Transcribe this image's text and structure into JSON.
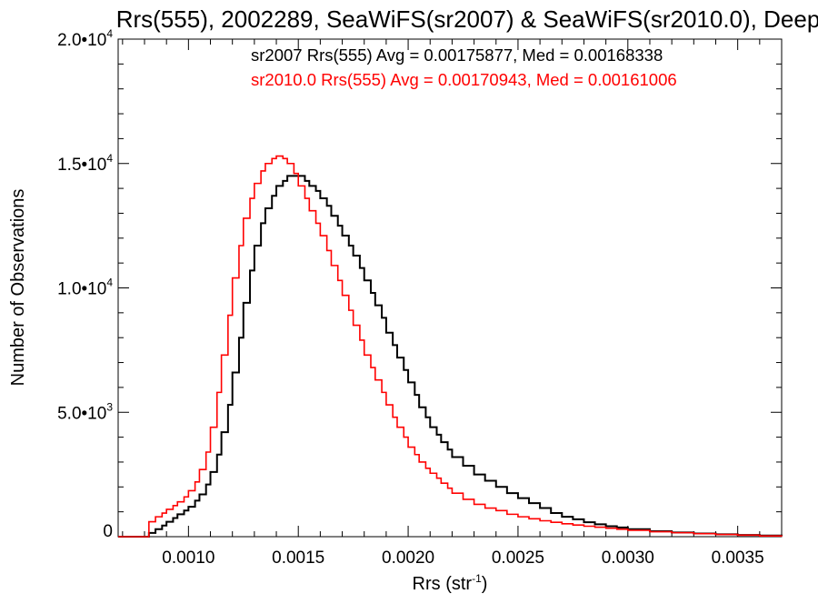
{
  "chart_data": {
    "type": "line",
    "title": "Rrs(555), 2002289, SeaWiFS(sr2007) & SeaWiFS(sr2010.0), Deep",
    "xlabel": "Rrs (str",
    "xlabel_sup": "-1",
    "xlabel_close": ")",
    "ylabel": "Number of Observations",
    "xlim": [
      0.00068,
      0.0037
    ],
    "ylim": [
      0,
      20000
    ],
    "grid": false,
    "x_ticks": [
      {
        "value": 0.001,
        "label": "0.0010"
      },
      {
        "value": 0.0015,
        "label": "0.0015"
      },
      {
        "value": 0.002,
        "label": "0.0020"
      },
      {
        "value": 0.0025,
        "label": "0.0025"
      },
      {
        "value": 0.003,
        "label": "0.0030"
      },
      {
        "value": 0.0035,
        "label": "0.0035"
      }
    ],
    "y_ticks": [
      {
        "value": 0,
        "mant": "0",
        "exp": ""
      },
      {
        "value": 5000,
        "mant": "5.0•10",
        "exp": "3"
      },
      {
        "value": 10000,
        "mant": "1.0•10",
        "exp": "4"
      },
      {
        "value": 15000,
        "mant": "1.5•10",
        "exp": "4"
      },
      {
        "value": 20000,
        "mant": "2.0•10",
        "exp": "4"
      }
    ],
    "annotations": [
      {
        "text": "sr2007 Rrs(555) Avg = 0.00175877, Med = 0.00168338",
        "color": "#000000"
      },
      {
        "text": "sr2010.0 Rrs(555) Avg = 0.00170943, Med = 0.00161006",
        "color": "#ff0000"
      }
    ],
    "series": [
      {
        "color": "#000000",
        "x": [
          0.00068,
          0.0008,
          0.00082,
          0.00085,
          0.00088,
          0.0009,
          0.00093,
          0.00095,
          0.00098,
          0.001,
          0.00103,
          0.00105,
          0.00108,
          0.0011,
          0.00113,
          0.00115,
          0.00118,
          0.0012,
          0.00123,
          0.00125,
          0.00128,
          0.0013,
          0.00133,
          0.00135,
          0.00138,
          0.0014,
          0.00143,
          0.00145,
          0.00148,
          0.0015,
          0.00153,
          0.00155,
          0.00158,
          0.0016,
          0.00163,
          0.00165,
          0.00168,
          0.0017,
          0.00173,
          0.00175,
          0.00178,
          0.0018,
          0.00183,
          0.00185,
          0.00188,
          0.0019,
          0.00193,
          0.00195,
          0.00198,
          0.002,
          0.00203,
          0.00205,
          0.00208,
          0.0021,
          0.00213,
          0.00215,
          0.00218,
          0.0022,
          0.00225,
          0.0023,
          0.00235,
          0.0024,
          0.00245,
          0.0025,
          0.00255,
          0.0026,
          0.00265,
          0.0027,
          0.00275,
          0.0028,
          0.00285,
          0.0029,
          0.00295,
          0.003,
          0.0031,
          0.0032,
          0.0033,
          0.0034,
          0.0035,
          0.0036,
          0.0037
        ],
        "y": [
          0,
          0,
          150,
          300,
          450,
          600,
          750,
          900,
          1050,
          1200,
          1450,
          1700,
          2100,
          2600,
          3300,
          4200,
          5300,
          6600,
          8000,
          9400,
          10700,
          11700,
          12600,
          13200,
          13700,
          14100,
          14300,
          14500,
          14500,
          14500,
          14300,
          14100,
          13900,
          13600,
          13300,
          12900,
          12500,
          12100,
          11700,
          11300,
          10800,
          10300,
          9800,
          9300,
          8800,
          8200,
          7700,
          7200,
          6700,
          6200,
          5700,
          5200,
          4800,
          4400,
          4100,
          3800,
          3500,
          3200,
          2850,
          2500,
          2250,
          2000,
          1750,
          1550,
          1350,
          1150,
          950,
          800,
          700,
          580,
          500,
          420,
          370,
          300,
          220,
          170,
          130,
          95,
          70,
          45,
          30
        ]
      },
      {
        "color": "#ff0000",
        "x": [
          0.00068,
          0.0008,
          0.00082,
          0.00085,
          0.00088,
          0.0009,
          0.00093,
          0.00095,
          0.00098,
          0.001,
          0.00103,
          0.00105,
          0.00108,
          0.0011,
          0.00113,
          0.00115,
          0.00118,
          0.0012,
          0.00123,
          0.00125,
          0.00128,
          0.0013,
          0.00133,
          0.00135,
          0.00138,
          0.0014,
          0.00143,
          0.00145,
          0.00148,
          0.0015,
          0.00153,
          0.00155,
          0.00158,
          0.0016,
          0.00163,
          0.00165,
          0.00168,
          0.0017,
          0.00173,
          0.00175,
          0.00178,
          0.0018,
          0.00183,
          0.00185,
          0.00188,
          0.0019,
          0.00193,
          0.00195,
          0.00198,
          0.002,
          0.00203,
          0.00205,
          0.00208,
          0.0021,
          0.00213,
          0.00215,
          0.00218,
          0.0022,
          0.00225,
          0.0023,
          0.00235,
          0.0024,
          0.00245,
          0.0025,
          0.00255,
          0.0026,
          0.00265,
          0.0027,
          0.00275,
          0.0028,
          0.00285,
          0.0029,
          0.00295,
          0.003,
          0.0031,
          0.0032,
          0.0033,
          0.0034,
          0.0035,
          0.0036,
          0.0037
        ],
        "y": [
          0,
          0,
          600,
          800,
          950,
          1100,
          1250,
          1400,
          1600,
          1850,
          2200,
          2700,
          3400,
          4400,
          5800,
          7300,
          8900,
          10400,
          11700,
          12800,
          13600,
          14200,
          14700,
          15000,
          15200,
          15300,
          15200,
          15000,
          14600,
          14100,
          13600,
          13100,
          12600,
          12100,
          11500,
          10900,
          10300,
          9700,
          9100,
          8500,
          7900,
          7300,
          6800,
          6300,
          5800,
          5300,
          4800,
          4400,
          4000,
          3600,
          3300,
          3000,
          2750,
          2550,
          2350,
          2150,
          1950,
          1750,
          1500,
          1300,
          1150,
          1050,
          900,
          800,
          720,
          640,
          580,
          520,
          470,
          420,
          380,
          340,
          300,
          260,
          200,
          160,
          120,
          90,
          60,
          30,
          10
        ]
      }
    ]
  }
}
